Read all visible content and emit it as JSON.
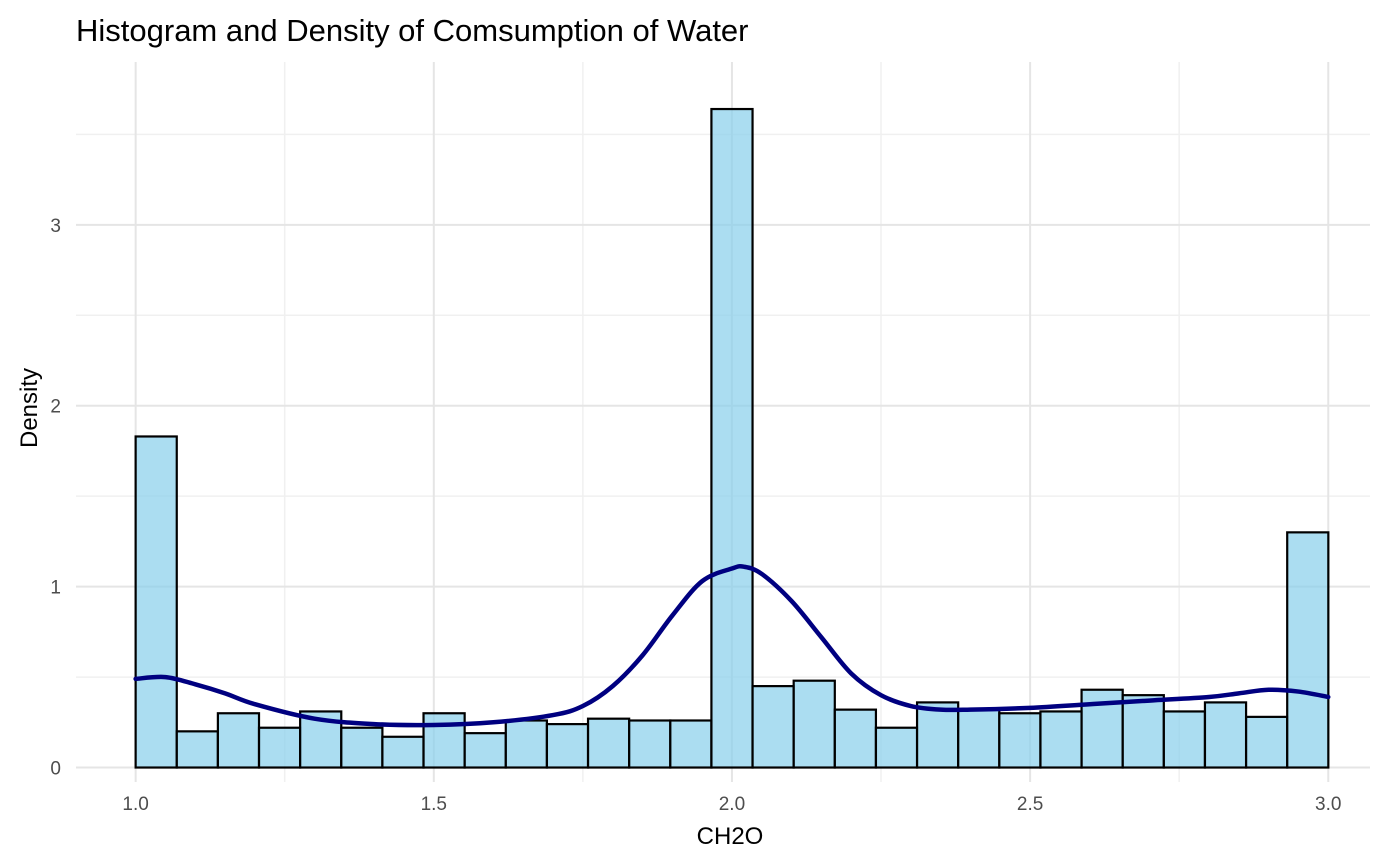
{
  "chart_data": {
    "type": "bar",
    "title": "Histogram and Density of Comsumption of Water",
    "xlabel": "CH2O",
    "ylabel": "Density",
    "xlim": [
      0.9,
      3.07
    ],
    "ylim": [
      -0.08,
      3.9
    ],
    "x_ticks": [
      1.0,
      1.5,
      2.0,
      2.5,
      3.0
    ],
    "x_tick_labels": [
      "1.0",
      "1.5",
      "2.0",
      "2.5",
      "3.0"
    ],
    "y_ticks": [
      0,
      1,
      2,
      3
    ],
    "y_tick_labels": [
      "0",
      "1",
      "2",
      "3"
    ],
    "grid": true,
    "legend": "none",
    "bin_width": 0.06897,
    "bin_start": 1.0,
    "series": [
      {
        "kind": "histogram",
        "values": [
          1.83,
          0.2,
          0.3,
          0.22,
          0.31,
          0.22,
          0.17,
          0.3,
          0.19,
          0.26,
          0.24,
          0.27,
          0.26,
          0.26,
          3.64,
          0.45,
          0.48,
          0.32,
          0.22,
          0.36,
          0.32,
          0.3,
          0.31,
          0.43,
          0.4,
          0.31,
          0.36,
          0.28,
          1.3
        ]
      },
      {
        "kind": "density",
        "x": [
          1.0,
          1.05,
          1.1,
          1.15,
          1.2,
          1.3,
          1.4,
          1.5,
          1.6,
          1.7,
          1.75,
          1.8,
          1.85,
          1.9,
          1.95,
          2.0,
          2.02,
          2.05,
          2.1,
          2.15,
          2.2,
          2.25,
          2.3,
          2.35,
          2.4,
          2.5,
          2.6,
          2.7,
          2.8,
          2.85,
          2.9,
          2.95,
          3.0
        ],
        "y": [
          0.49,
          0.5,
          0.46,
          0.41,
          0.35,
          0.27,
          0.24,
          0.235,
          0.25,
          0.29,
          0.34,
          0.45,
          0.62,
          0.84,
          1.03,
          1.1,
          1.11,
          1.07,
          0.92,
          0.72,
          0.52,
          0.4,
          0.34,
          0.32,
          0.32,
          0.33,
          0.35,
          0.37,
          0.39,
          0.41,
          0.43,
          0.42,
          0.39
        ]
      }
    ]
  },
  "colors": {
    "bar_fill": "#87CEEB",
    "bar_stroke": "#000000",
    "density_line": "#000080"
  }
}
